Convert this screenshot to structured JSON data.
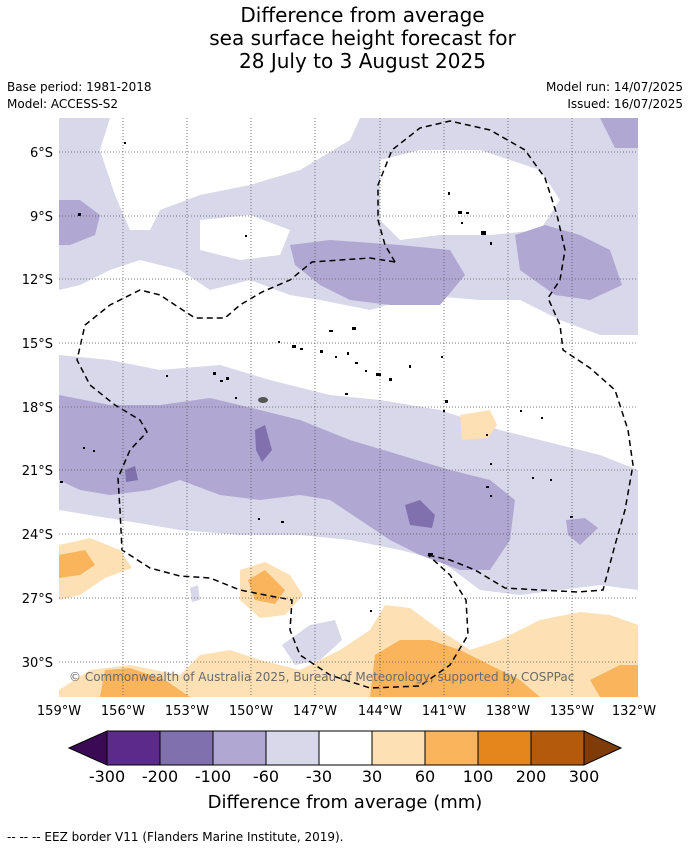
{
  "title": {
    "line1": "Difference from average",
    "line2": "sea surface height forecast for",
    "line3": "28 July to 3 August 2025"
  },
  "meta": {
    "base_period": "Base period: 1981-2018",
    "model": "Model: ACCESS-S2",
    "model_run": "Model run: 14/07/2025",
    "issued": "Issued: 16/07/2025"
  },
  "copyright": "© Commonwealth of Australia 2025, Bureau of Meteorology, supported by COSPPac",
  "lat_labels": [
    "6°S",
    "9°S",
    "12°S",
    "15°S",
    "18°S",
    "21°S",
    "24°S",
    "27°S",
    "30°S"
  ],
  "lon_labels": [
    "159°W",
    "156°W",
    "153°W",
    "150°W",
    "147°W",
    "144°W",
    "141°W",
    "138°W",
    "135°W",
    "132°W"
  ],
  "colorbar": {
    "title": "Difference from average (mm)",
    "ticks": [
      "-300",
      "-200",
      "-100",
      "-60",
      "-30",
      "30",
      "60",
      "100",
      "200",
      "300"
    ],
    "colors": [
      "#3b0a55",
      "#5b2a8a",
      "#8070ad",
      "#b0a8d2",
      "#d8d8ea",
      "#ffffff",
      "#fde0b4",
      "#f9b45c",
      "#e5861c",
      "#b35a0c",
      "#7f3b08"
    ]
  },
  "footnote": "--  --  -- EEZ border V11 (Flanders Marine Institute, 2019)."
}
